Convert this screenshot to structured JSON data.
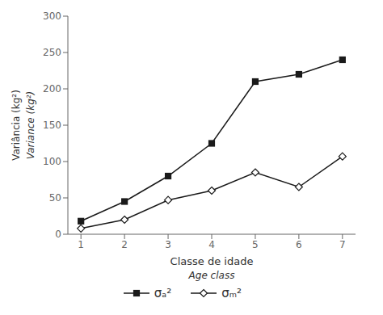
{
  "chart_data": {
    "type": "line",
    "x": [
      1,
      2,
      3,
      4,
      5,
      6,
      7
    ],
    "series": [
      {
        "name": "σₐ²",
        "color": "#1a1a1a",
        "marker": "square",
        "values": [
          18,
          45,
          80,
          125,
          210,
          220,
          240
        ]
      },
      {
        "name": "σₘ²",
        "color": "#1a1a1a",
        "marker": "hollow_diamond",
        "values": [
          8,
          20,
          47,
          60,
          85,
          65,
          107
        ]
      }
    ],
    "x_label": [
      "Classe de idade",
      "Age class"
    ],
    "y_label": [
      "Variância (kg²)",
      "Variance (kg²)"
    ],
    "xlim": [
      0.7,
      7.3
    ],
    "ylim": [
      0,
      300
    ],
    "xticks": [
      1,
      2,
      3,
      4,
      5,
      6,
      7
    ],
    "yticks": [
      0,
      50,
      100,
      150,
      200,
      250,
      300
    ],
    "grid": false,
    "legend": "bottom"
  }
}
